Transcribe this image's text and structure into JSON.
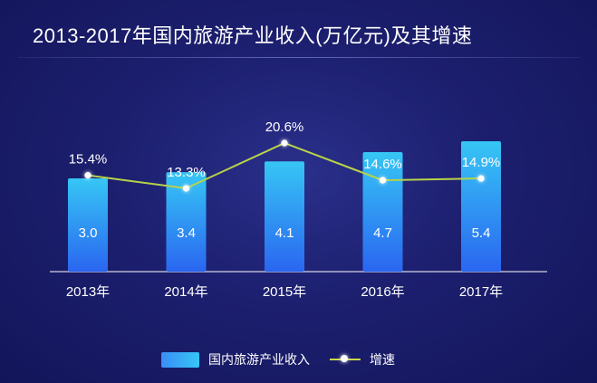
{
  "title": "2013-2017年国内旅游产业收入(万亿元)及其增速",
  "legend": {
    "bar_label": "国内旅游产业收入",
    "line_label": "增速"
  },
  "colors": {
    "background": "#1c1f6e",
    "bar_top": "#36c6f5",
    "bar_bottom": "#2a66f0",
    "line": "#b7d349",
    "marker": "#ffffff"
  },
  "chart_data": {
    "type": "bar",
    "title": "2013-2017年国内旅游产业收入(万亿元)及其增速",
    "categories": [
      "2013年",
      "2014年",
      "2015年",
      "2016年",
      "2017年"
    ],
    "series": [
      {
        "name": "国内旅游产业收入",
        "type": "bar",
        "values": [
          3.0,
          3.4,
          4.1,
          4.7,
          5.4
        ],
        "labels": [
          "3.0",
          "3.4",
          "4.1",
          "4.7",
          "5.4"
        ]
      },
      {
        "name": "增速",
        "type": "line",
        "values": [
          15.4,
          13.3,
          20.6,
          14.6,
          14.9
        ],
        "labels": [
          "15.4%",
          "13.3%",
          "20.6%",
          "14.6%",
          "14.9%"
        ]
      }
    ],
    "xlabel": "",
    "ylabel": "",
    "grid": false,
    "legend_position": "bottom"
  }
}
